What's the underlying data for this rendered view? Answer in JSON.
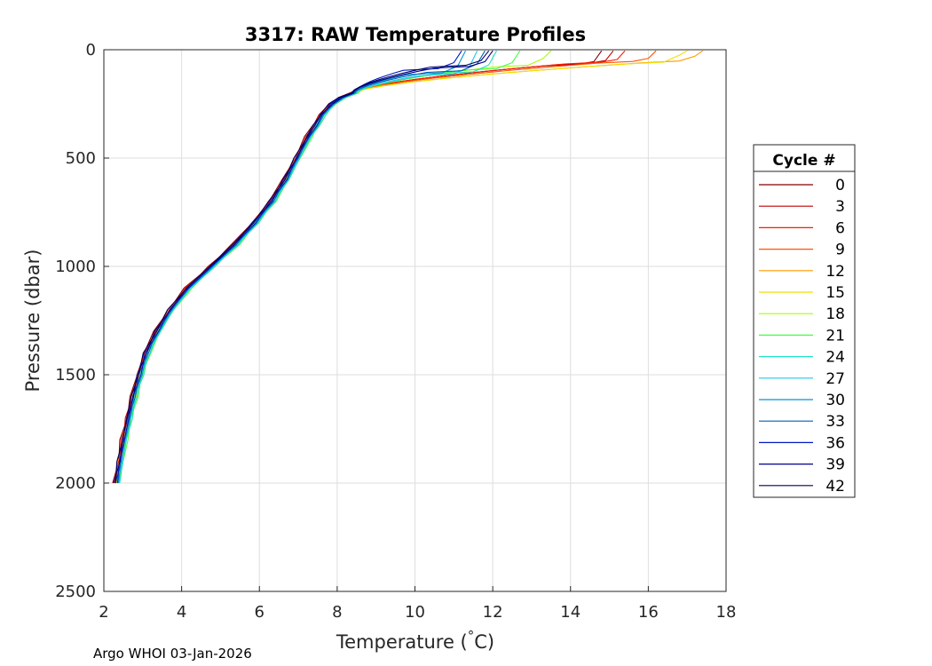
{
  "chart_data": {
    "type": "line",
    "title": "3317: RAW Temperature Profiles",
    "xlabel": "Temperature (°C)",
    "xlabel_main": "Temperature (",
    "xlabel_degree": "°",
    "xlabel_unit": "C)",
    "ylabel": "Pressure (dbar)",
    "xlim": [
      2,
      18
    ],
    "ylim": [
      0,
      2500
    ],
    "y_reversed": true,
    "grid": true,
    "xticks": [
      2,
      4,
      6,
      8,
      10,
      12,
      14,
      16,
      18
    ],
    "yticks": [
      0,
      500,
      1000,
      1500,
      2000,
      2500
    ],
    "legend": {
      "title": "Cycle #",
      "placement": "right",
      "entries": [
        {
          "label": "0",
          "color": "#800000"
        },
        {
          "label": "3",
          "color": "#c00000"
        },
        {
          "label": "6",
          "color": "#ff1a00"
        },
        {
          "label": "9",
          "color": "#ff5500"
        },
        {
          "label": "12",
          "color": "#ff9900"
        },
        {
          "label": "15",
          "color": "#f0e000"
        },
        {
          "label": "18",
          "color": "#a8ff00"
        },
        {
          "label": "21",
          "color": "#40ff40"
        },
        {
          "label": "24",
          "color": "#20e0c0"
        },
        {
          "label": "27",
          "color": "#20c8e8"
        },
        {
          "label": "30",
          "color": "#0098d0"
        },
        {
          "label": "33",
          "color": "#0060b0"
        },
        {
          "label": "36",
          "color": "#0018c0"
        },
        {
          "label": "39",
          "color": "#00008c"
        },
        {
          "label": "42",
          "color": "#000060"
        }
      ]
    },
    "profile_base": {
      "pressure": [
        2000,
        1900,
        1800,
        1700,
        1600,
        1500,
        1400,
        1300,
        1200,
        1100,
        1000,
        900,
        800,
        700,
        600,
        500,
        400,
        350,
        300,
        250,
        220,
        200
      ],
      "temperature": [
        2.3,
        2.4,
        2.5,
        2.62,
        2.75,
        2.9,
        3.08,
        3.35,
        3.7,
        4.15,
        4.75,
        5.35,
        5.85,
        6.3,
        6.65,
        6.95,
        7.25,
        7.42,
        7.6,
        7.85,
        8.1,
        8.4
      ]
    },
    "profiles": [
      {
        "cycle": 0,
        "color": "#800000",
        "offset": -0.05,
        "thermocline_p": 75,
        "ml_depth": 55,
        "surface_t": 14.8
      },
      {
        "cycle": 3,
        "color": "#c00000",
        "offset": -0.03,
        "thermocline_p": 70,
        "ml_depth": 50,
        "surface_t": 15.1
      },
      {
        "cycle": 6,
        "color": "#ff1a00",
        "offset": -0.02,
        "thermocline_p": 65,
        "ml_depth": 45,
        "surface_t": 15.4
      },
      {
        "cycle": 9,
        "color": "#ff5500",
        "offset": 0.0,
        "thermocline_p": 62,
        "ml_depth": 40,
        "surface_t": 16.2
      },
      {
        "cycle": 12,
        "color": "#ff9900",
        "offset": 0.02,
        "thermocline_p": 60,
        "ml_depth": 30,
        "surface_t": 17.4
      },
      {
        "cycle": 15,
        "color": "#f0e000",
        "offset": 0.04,
        "thermocline_p": 65,
        "ml_depth": 25,
        "surface_t": 17.0
      },
      {
        "cycle": 18,
        "color": "#a8ff00",
        "offset": 0.08,
        "thermocline_p": 80,
        "ml_depth": 40,
        "surface_t": 13.5
      },
      {
        "cycle": 21,
        "color": "#40ff40",
        "offset": 0.1,
        "thermocline_p": 95,
        "ml_depth": 60,
        "surface_t": 12.7
      },
      {
        "cycle": 24,
        "color": "#20e0c0",
        "offset": 0.09,
        "thermocline_p": 110,
        "ml_depth": 70,
        "surface_t": 12.1
      },
      {
        "cycle": 27,
        "color": "#20c8e8",
        "offset": 0.07,
        "thermocline_p": 120,
        "ml_depth": 80,
        "surface_t": 11.6
      },
      {
        "cycle": 30,
        "color": "#0098d0",
        "offset": 0.05,
        "thermocline_p": 115,
        "ml_depth": 75,
        "surface_t": 11.3
      },
      {
        "cycle": 33,
        "color": "#0060b0",
        "offset": 0.03,
        "thermocline_p": 105,
        "ml_depth": 65,
        "surface_t": 11.8
      },
      {
        "cycle": 36,
        "color": "#0018c0",
        "offset": 0.02,
        "thermocline_p": 95,
        "ml_depth": 60,
        "surface_t": 11.2
      },
      {
        "cycle": 39,
        "color": "#00008c",
        "offset": -0.01,
        "thermocline_p": 85,
        "ml_depth": 55,
        "surface_t": 12.0
      },
      {
        "cycle": 42,
        "color": "#000060",
        "offset": -0.03,
        "thermocline_p": 80,
        "ml_depth": 50,
        "surface_t": 11.9
      }
    ]
  },
  "footer": {
    "credit": "Argo WHOI 03-Jan-2026"
  }
}
